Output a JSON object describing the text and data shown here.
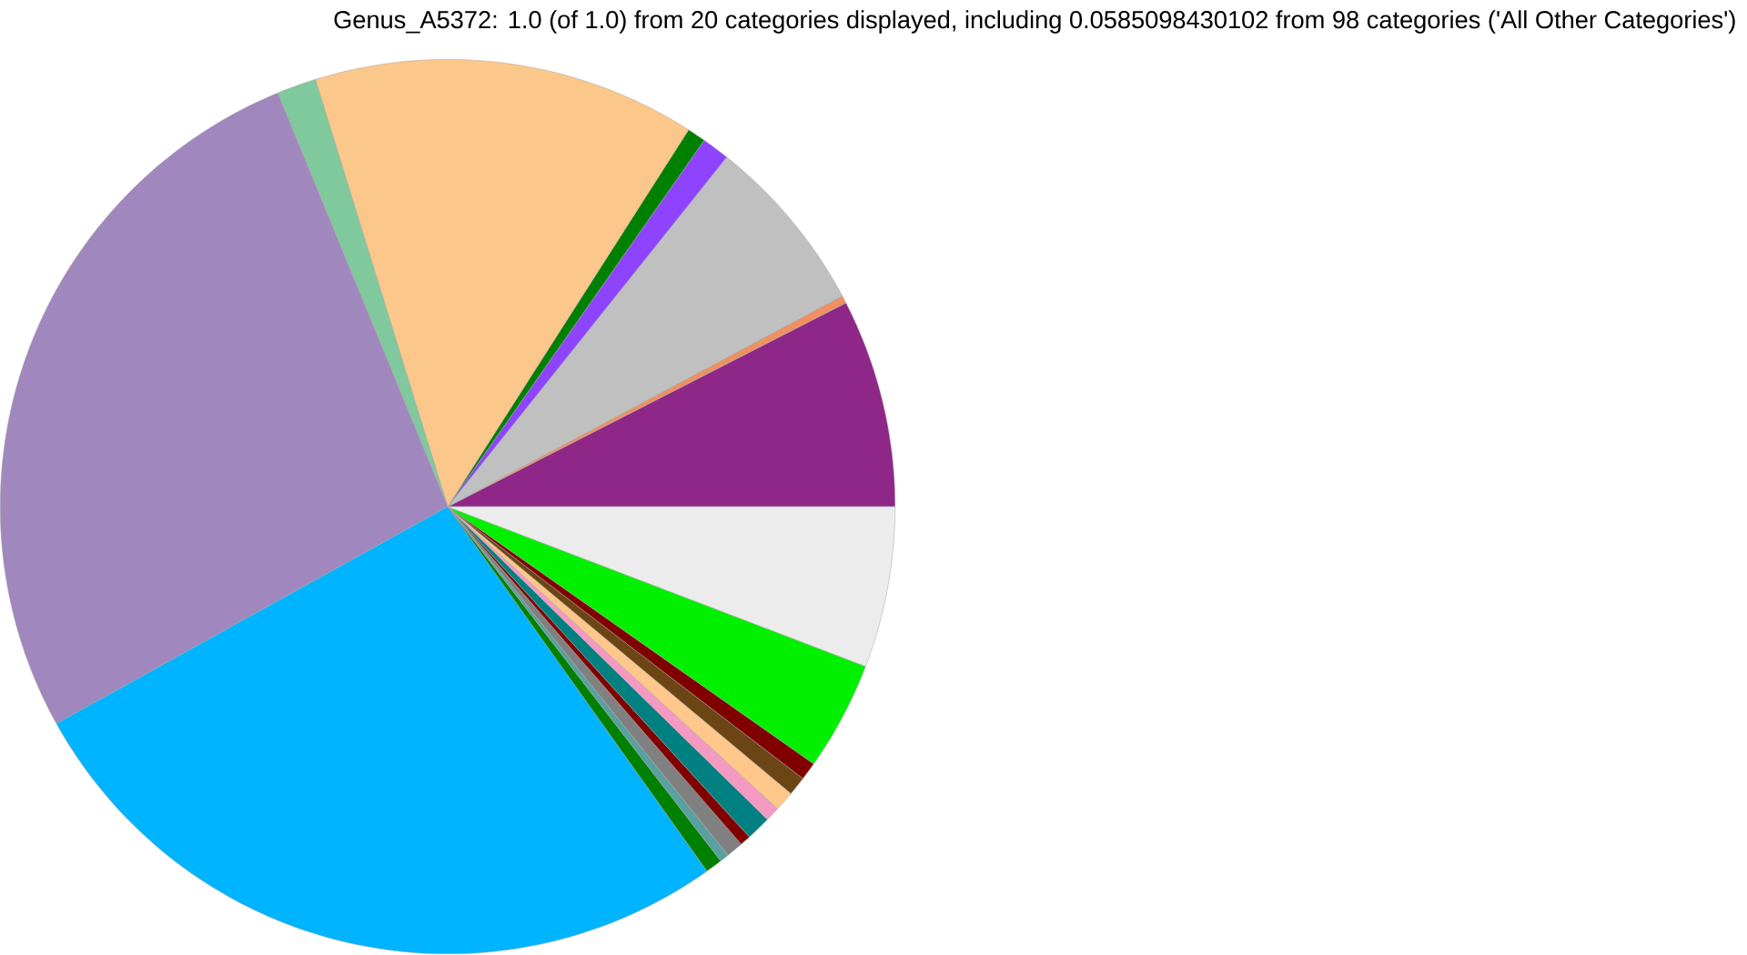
{
  "chart_data": {
    "type": "pie",
    "title": "Genus_A5372: 1.0 (of 1.0) from 20 categories displayed, including 0.0585098430102 from 98 categories ('All Other Categories')",
    "categories": [
      null,
      null,
      null,
      null,
      null,
      null,
      null,
      null,
      null,
      null,
      null,
      null,
      null,
      null,
      null,
      null,
      null,
      null,
      null,
      null
    ],
    "values": [
      7.53,
      0.28,
      6.47,
      1.0,
      0.67,
      13.83,
      1.42,
      26.86,
      26.78,
      0.61,
      0.33,
      0.61,
      0.39,
      0.89,
      0.53,
      0.72,
      0.68,
      0.65,
      3.94,
      5.81
    ],
    "colors": [
      "#8e2788",
      "#f09060",
      "#c0c0c0",
      "#8e44ff",
      "#008000",
      "#fcc78a",
      "#80c99c",
      "#a087bd",
      "#00b4ff",
      "#008000",
      "#5aa0a0",
      "#808080",
      "#800000",
      "#008080",
      "#f49ac2",
      "#ffc88a",
      "#6b4513",
      "#800000",
      "#00f000",
      "#ececec"
    ]
  }
}
